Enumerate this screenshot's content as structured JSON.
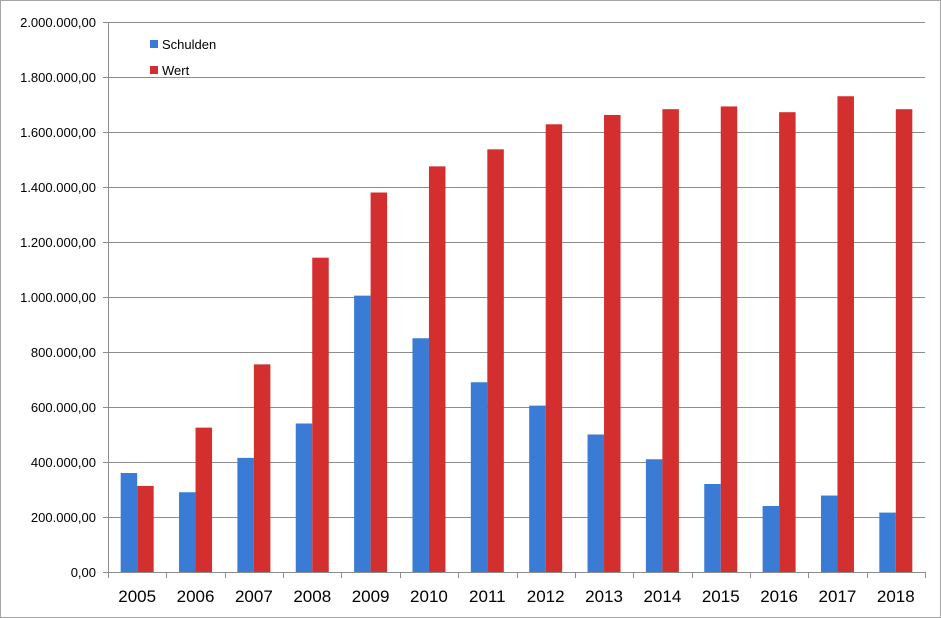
{
  "chart_data": {
    "type": "bar",
    "title": "",
    "xlabel": "",
    "ylabel": "",
    "categories": [
      "2005",
      "2006",
      "2007",
      "2008",
      "2009",
      "2010",
      "2011",
      "2012",
      "2013",
      "2014",
      "2015",
      "2016",
      "2017",
      "2018"
    ],
    "series": [
      {
        "name": "Schulden",
        "color": "#3a7bd5",
        "values": [
          360000,
          290000,
          415000,
          540000,
          1005000,
          850000,
          690000,
          605000,
          500000,
          410000,
          320000,
          240000,
          278000,
          216000
        ]
      },
      {
        "name": "Wert",
        "color": "#d32f2f",
        "values": [
          313000,
          525000,
          755000,
          1143000,
          1380000,
          1475000,
          1537000,
          1628000,
          1662000,
          1683000,
          1693000,
          1672000,
          1730000,
          1683000
        ]
      }
    ],
    "ylim": [
      0,
      2000000
    ],
    "yticks": [
      0,
      200000,
      400000,
      600000,
      800000,
      1000000,
      1200000,
      1400000,
      1600000,
      1800000,
      2000000
    ],
    "ytick_labels": [
      "0,00",
      "200.000,00",
      "400.000,00",
      "600.000,00",
      "800.000,00",
      "1.000.000,00",
      "1.200.000,00",
      "1.400.000,00",
      "1.600.000,00",
      "1.800.000,00",
      "2.000.000,00"
    ],
    "grid": true,
    "legend_position": "top-left"
  }
}
